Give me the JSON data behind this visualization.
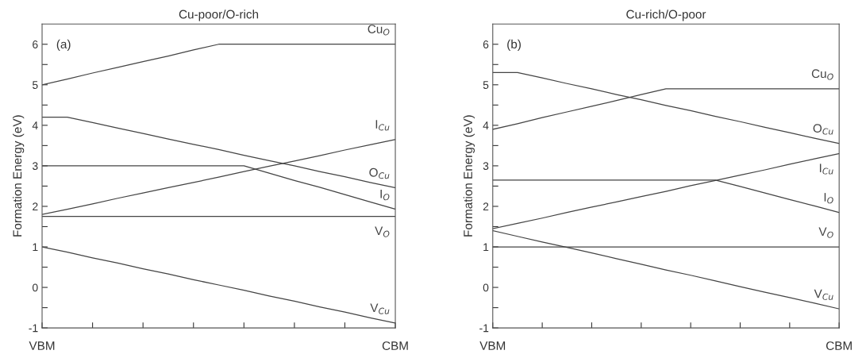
{
  "chart_data": [
    {
      "type": "line",
      "title": "Cu-poor/O-rich",
      "ylabel": "Formation Energy (eV)",
      "ylim": [
        -1,
        6.5
      ],
      "categories": [
        "VBM",
        null,
        null,
        null,
        null,
        null,
        null,
        null,
        null,
        null,
        null,
        null,
        null,
        null,
        "CBM"
      ],
      "yticks": [
        -1,
        {
          "value": -0.5,
          "label": null
        },
        0,
        {
          "value": 0.5,
          "label": null
        },
        1,
        {
          "value": 1.5,
          "label": null
        },
        2,
        {
          "value": 2.5,
          "label": null
        },
        3,
        {
          "value": 3.5,
          "label": null
        },
        4,
        {
          "value": 4.5,
          "label": null
        },
        5,
        {
          "value": 5.5,
          "label": null
        },
        6
      ],
      "grid": false,
      "legend": false,
      "marker": "none",
      "line_style": "solid",
      "series": [
        {
          "name": "Cu$_{O}$",
          "color": "#444444",
          "values": [
            5.0,
            5.14,
            5.29,
            5.43,
            5.57,
            5.71,
            5.86,
            6.0,
            6.0,
            6.0,
            6.0,
            6.0,
            6.0,
            6.0,
            6.0
          ]
        },
        {
          "name": "O$_{Cu}$",
          "color": "#444444",
          "values": [
            4.2,
            4.2,
            4.07,
            3.93,
            3.8,
            3.66,
            3.53,
            3.4,
            3.26,
            3.13,
            3.0,
            2.86,
            2.73,
            2.59,
            2.46
          ]
        },
        {
          "name": "I$_{O}$",
          "color": "#444444",
          "values": [
            3.0,
            3.0,
            3.0,
            3.0,
            3.0,
            3.0,
            3.0,
            3.0,
            3.0,
            2.82,
            2.64,
            2.47,
            2.29,
            2.11,
            1.93
          ]
        },
        {
          "name": "I$_{Cu}$",
          "color": "#444444",
          "values": [
            1.8,
            1.93,
            2.06,
            2.2,
            2.33,
            2.46,
            2.59,
            2.72,
            2.86,
            2.99,
            3.12,
            3.25,
            3.39,
            3.52,
            3.65
          ]
        },
        {
          "name": "V$_{O}$",
          "color": "#444444",
          "values": [
            1.75,
            1.75,
            1.75,
            1.75,
            1.75,
            1.75,
            1.75,
            1.75,
            1.75,
            1.75,
            1.75,
            1.75,
            1.75,
            1.75,
            1.75
          ]
        },
        {
          "name": "V$_{Cu}$",
          "color": "#444444",
          "values": [
            1.0,
            0.87,
            0.73,
            0.6,
            0.46,
            0.33,
            0.19,
            0.06,
            -0.07,
            -0.21,
            -0.34,
            -0.48,
            -0.61,
            -0.75,
            -0.88
          ]
        }
      ],
      "annotations": [
        "(a)"
      ]
    },
    {
      "type": "line",
      "title": "Cu-rich/O-poor",
      "ylabel": "Formation Energy (eV)",
      "ylim": [
        -1,
        6.5
      ],
      "categories": [
        "VBM",
        null,
        null,
        null,
        null,
        null,
        null,
        null,
        null,
        null,
        null,
        null,
        null,
        null,
        "CBM"
      ],
      "yticks": [
        -1,
        {
          "value": -0.5,
          "label": null
        },
        0,
        {
          "value": 0.5,
          "label": null
        },
        1,
        {
          "value": 1.5,
          "label": null
        },
        2,
        {
          "value": 2.5,
          "label": null
        },
        3,
        {
          "value": 3.5,
          "label": null
        },
        4,
        {
          "value": 4.5,
          "label": null
        },
        5,
        {
          "value": 5.5,
          "label": null
        },
        6
      ],
      "grid": false,
      "legend": false,
      "marker": "none",
      "line_style": "solid",
      "series": [
        {
          "name": "Cu$_{O}$",
          "color": "#444444",
          "values": [
            3.9,
            4.04,
            4.19,
            4.33,
            4.47,
            4.61,
            4.76,
            4.9,
            4.9,
            4.9,
            4.9,
            4.9,
            4.9,
            4.9,
            4.9
          ]
        },
        {
          "name": "O$_{Cu}$",
          "color": "#444444",
          "values": [
            5.3,
            5.3,
            5.17,
            5.03,
            4.9,
            4.76,
            4.63,
            4.49,
            4.36,
            4.22,
            4.09,
            3.95,
            3.82,
            3.68,
            3.55
          ]
        },
        {
          "name": "I$_{Cu}$",
          "color": "#444444",
          "values": [
            1.45,
            1.58,
            1.71,
            1.85,
            1.98,
            2.11,
            2.24,
            2.37,
            2.51,
            2.64,
            2.77,
            2.9,
            3.04,
            3.17,
            3.3
          ]
        },
        {
          "name": "I$_{O}$",
          "color": "#444444",
          "values": [
            2.65,
            2.65,
            2.65,
            2.65,
            2.65,
            2.65,
            2.65,
            2.65,
            2.65,
            2.65,
            2.49,
            2.33,
            2.17,
            2.01,
            1.85
          ]
        },
        {
          "name": "V$_{O}$",
          "color": "#444444",
          "values": [
            1.0,
            1.0,
            1.0,
            1.0,
            1.0,
            1.0,
            1.0,
            1.0,
            1.0,
            1.0,
            1.0,
            1.0,
            1.0,
            1.0,
            1.0
          ]
        },
        {
          "name": "V$_{Cu}$",
          "color": "#444444",
          "values": [
            1.4,
            1.26,
            1.12,
            0.99,
            0.85,
            0.71,
            0.57,
            0.43,
            0.3,
            0.16,
            0.02,
            -0.12,
            -0.25,
            -0.39,
            -0.53
          ]
        }
      ],
      "annotations": [
        "(b)"
      ]
    }
  ]
}
